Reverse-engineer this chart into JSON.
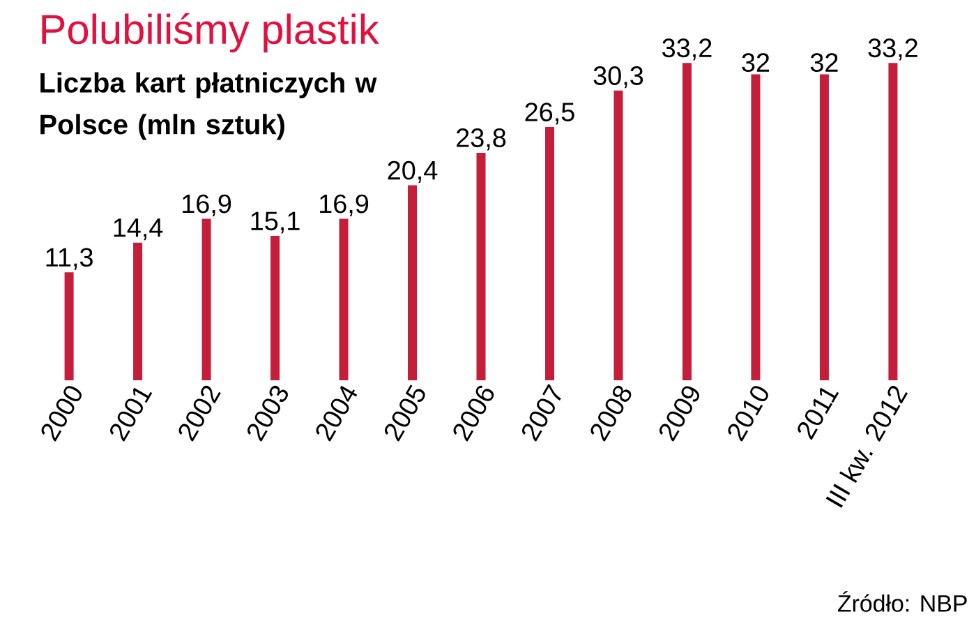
{
  "chart_data": {
    "type": "bar",
    "title": "Polubiliśmy plastik",
    "subtitle": "Liczba kart płatniczych w Polsce (mln sztuk)",
    "categories": [
      "2000",
      "2001",
      "2002",
      "2003",
      "2004",
      "2005",
      "2006",
      "2007",
      "2008",
      "2009",
      "2010",
      "2011",
      "III kw. 2012"
    ],
    "values": [
      11.3,
      14.4,
      16.9,
      15.1,
      16.9,
      20.4,
      23.8,
      26.5,
      30.3,
      33.2,
      32,
      32,
      33.2
    ],
    "value_labels": [
      "11,3",
      "14,4",
      "16,9",
      "15,1",
      "16,9",
      "20,4",
      "23,8",
      "26,5",
      "30,3",
      "33,2",
      "32",
      "32",
      "33,2"
    ],
    "color": "#c41e3a",
    "annotations": [
      "Źródło: NBP"
    ]
  }
}
